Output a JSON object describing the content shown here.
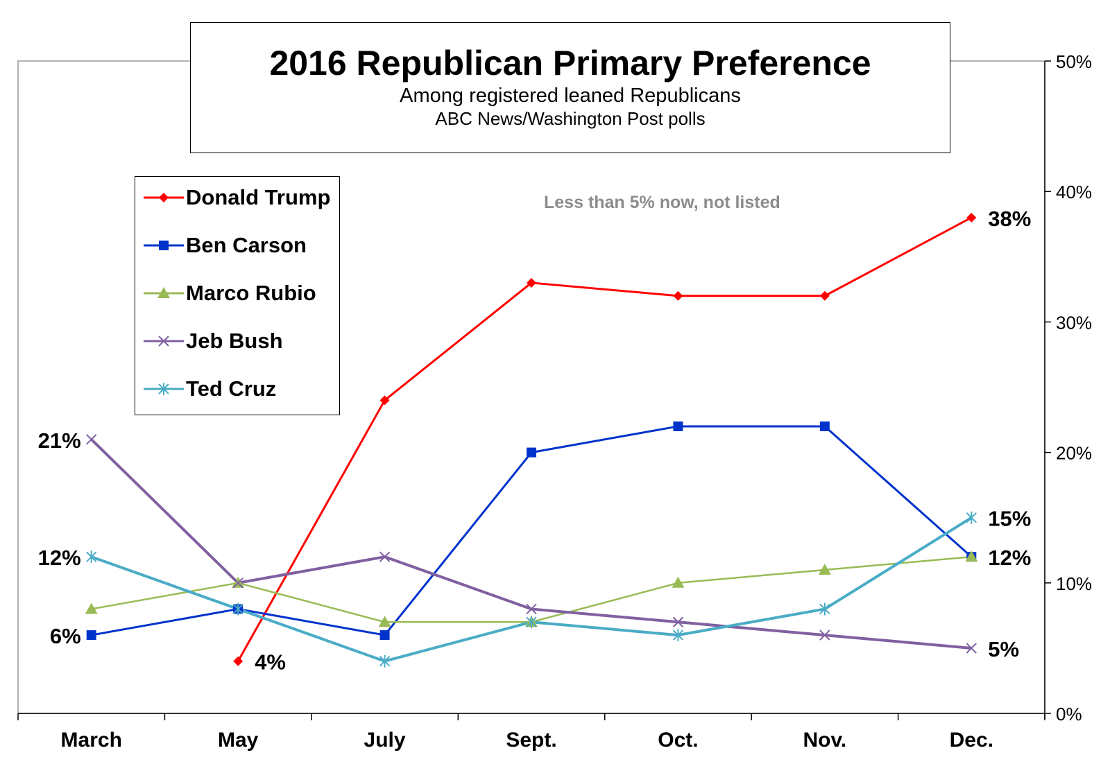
{
  "chart_data": {
    "type": "line",
    "title": "2016 Republican Primary Preference",
    "subtitle": "Among registered leaned Republicans",
    "source": "ABC News/Washington  Post polls",
    "note": "Less than 5% now, not listed",
    "categories": [
      "March",
      "May",
      "July",
      "Sept.",
      "Oct.",
      "Nov.",
      "Dec."
    ],
    "ylim": [
      0,
      50
    ],
    "yticks": [
      "0%",
      "10%",
      "20%",
      "30%",
      "40%",
      "50%"
    ],
    "ytick_values": [
      0,
      10,
      20,
      30,
      40,
      50
    ],
    "y_axis_side": "right",
    "legend_position": "top-left",
    "series": [
      {
        "name": "Donald Trump",
        "color": "#ff0000",
        "marker": "diamond",
        "values": [
          null,
          4,
          24,
          33,
          32,
          32,
          38
        ]
      },
      {
        "name": "Ben Carson",
        "color": "#0033cc",
        "marker": "square",
        "values": [
          6,
          8,
          6,
          20,
          22,
          22,
          12
        ]
      },
      {
        "name": "Marco Rubio",
        "color": "#99bb55",
        "marker": "triangle",
        "values": [
          8,
          10,
          7,
          7,
          10,
          11,
          12
        ]
      },
      {
        "name": "Jeb Bush",
        "color": "#8060a0",
        "marker": "x",
        "values": [
          21,
          10,
          12,
          8,
          7,
          6,
          5
        ]
      },
      {
        "name": "Ted Cruz",
        "color": "#4aacc6",
        "marker": "star",
        "values": [
          12,
          8,
          4,
          7,
          6,
          8,
          15
        ]
      }
    ],
    "data_labels": [
      {
        "series": "Jeb Bush",
        "index": 0,
        "text": "21%",
        "side": "left"
      },
      {
        "series": "Ted Cruz",
        "index": 0,
        "text": "12%",
        "side": "left"
      },
      {
        "series": "Ben Carson",
        "index": 0,
        "text": "6%",
        "side": "left"
      },
      {
        "series": "Donald Trump",
        "index": 1,
        "text": "4%",
        "side": "right"
      },
      {
        "series": "Donald Trump",
        "index": 6,
        "text": "38%",
        "side": "right"
      },
      {
        "series": "Ted Cruz",
        "index": 6,
        "text": "15%",
        "side": "right"
      },
      {
        "series": "Marco Rubio",
        "index": 6,
        "text": "12%",
        "side": "right"
      },
      {
        "series": "Jeb Bush",
        "index": 6,
        "text": "5%",
        "side": "right"
      }
    ]
  }
}
